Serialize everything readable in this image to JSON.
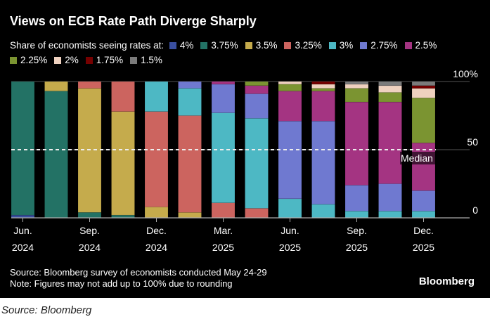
{
  "chart_data": {
    "type": "bar",
    "stacked": true,
    "title": "Views on ECB Rate Path Diverge Sharply",
    "legend_title": "Share of economists seeing rates at:",
    "legend_placement": "top",
    "categories": [
      "Jun 2024",
      "Jul 2024",
      "Sep 2024",
      "Oct 2024",
      "Dec 2024",
      "Jan 2025",
      "Mar 2025",
      "Apr 2025",
      "Jun 2025",
      "Jul 2025",
      "Sep 2025",
      "Oct 2025",
      "Dec 2025"
    ],
    "x_tick_labels": [
      {
        "index": 0,
        "month": "Jun.",
        "year": "2024"
      },
      {
        "index": 2,
        "month": "Sep.",
        "year": "2024"
      },
      {
        "index": 4,
        "month": "Dec.",
        "year": "2024"
      },
      {
        "index": 6,
        "month": "Mar.",
        "year": "2025"
      },
      {
        "index": 8,
        "month": "Jun.",
        "year": "2025"
      },
      {
        "index": 10,
        "month": "Sep.",
        "year": "2025"
      },
      {
        "index": 12,
        "month": "Dec.",
        "year": "2025"
      }
    ],
    "y_ticks": [
      {
        "value": 100,
        "label": "100%"
      },
      {
        "value": 50,
        "label": "50"
      },
      {
        "value": 0,
        "label": "0"
      }
    ],
    "ylim": [
      0,
      100
    ],
    "median_line": {
      "value": 50,
      "label": "Median"
    },
    "series": [
      {
        "name": "4%",
        "color": "#3a4fa0",
        "values": [
          2,
          0,
          0,
          0,
          0,
          0,
          0,
          0,
          0,
          0,
          0,
          0,
          0
        ]
      },
      {
        "name": "3.75%",
        "color": "#237265",
        "values": [
          98,
          93,
          4,
          2,
          0,
          0,
          0,
          0,
          0,
          0,
          0,
          0,
          0
        ]
      },
      {
        "name": "3.5%",
        "color": "#c5ab4c",
        "values": [
          0,
          7,
          91,
          76,
          8,
          4,
          0,
          0,
          0,
          0,
          0,
          0,
          0
        ]
      },
      {
        "name": "3.25%",
        "color": "#cc645f",
        "values": [
          0,
          0,
          5,
          22,
          70,
          71,
          11,
          7,
          0,
          0,
          0,
          0,
          0
        ]
      },
      {
        "name": "3%",
        "color": "#4db8c4",
        "values": [
          0,
          0,
          0,
          0,
          22,
          20,
          66,
          66,
          14,
          10,
          5,
          5,
          5
        ]
      },
      {
        "name": "2.75%",
        "color": "#6f79d0",
        "values": [
          0,
          0,
          0,
          0,
          0,
          5,
          21,
          18,
          57,
          61,
          19,
          20,
          15
        ]
      },
      {
        "name": "2.5%",
        "color": "#a43482",
        "values": [
          0,
          0,
          0,
          0,
          0,
          0,
          2,
          6,
          22,
          22,
          61,
          60,
          35
        ]
      },
      {
        "name": "2.25%",
        "color": "#7b9431",
        "values": [
          0,
          0,
          0,
          0,
          0,
          0,
          0,
          3,
          5,
          2,
          10,
          7,
          33
        ]
      },
      {
        "name": "2%",
        "color": "#efd1bf",
        "values": [
          0,
          0,
          0,
          0,
          0,
          0,
          0,
          0,
          2,
          3,
          3,
          5,
          7
        ]
      },
      {
        "name": "1.75%",
        "color": "#760000",
        "values": [
          0,
          0,
          0,
          0,
          0,
          0,
          0,
          0,
          0,
          2,
          0,
          0,
          2
        ]
      },
      {
        "name": "1.5%",
        "color": "#7b7b7b",
        "values": [
          0,
          0,
          0,
          0,
          0,
          0,
          0,
          0,
          0,
          0,
          2,
          3,
          3
        ]
      }
    ]
  },
  "notes": {
    "source": "Source: Bloomberg survey of economists conducted May 24-29",
    "note": "Note: Figures may not add up to 100% due to rounding"
  },
  "logo": "Bloomberg",
  "credit": "Source: Bloomberg"
}
